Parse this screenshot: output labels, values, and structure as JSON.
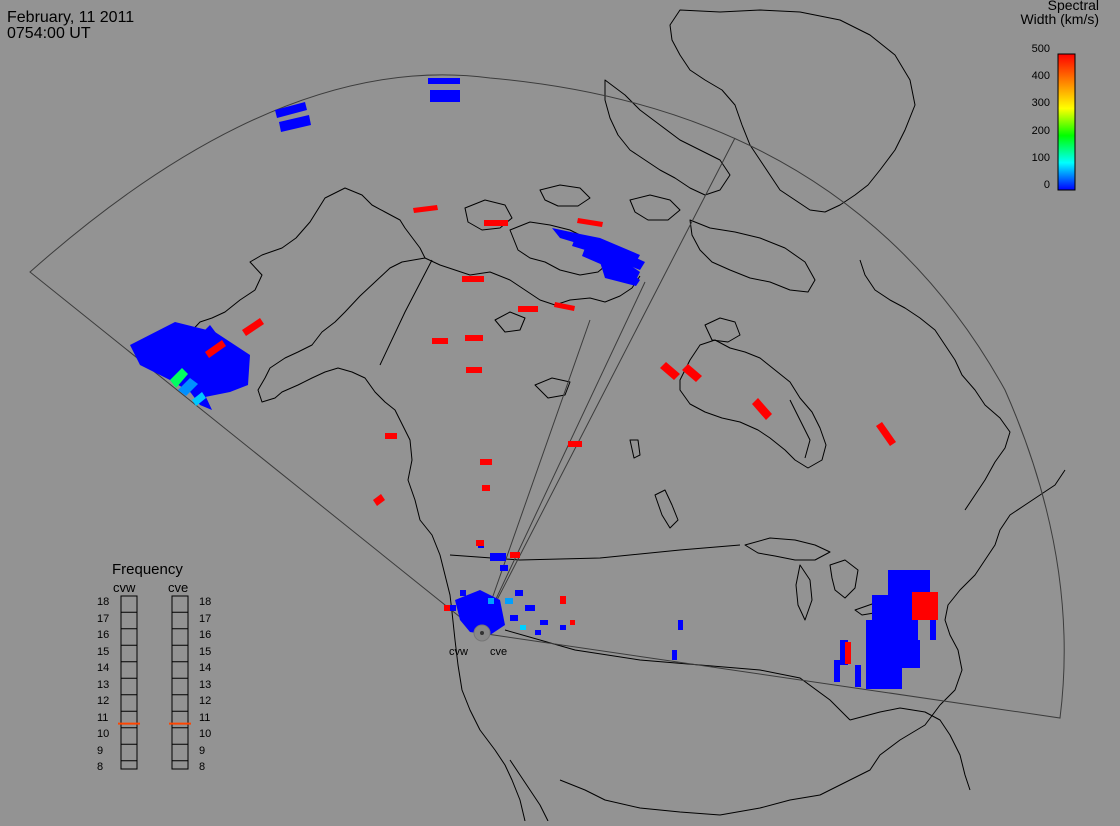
{
  "header": {
    "date": "February, 11 2011",
    "time": "0754:00 UT"
  },
  "colorbar": {
    "title": "Spectral",
    "subtitle": "Width (km/s)",
    "ticks": [
      "500",
      "400",
      "300",
      "200",
      "100",
      "0"
    ],
    "colors": [
      "#ff0000",
      "#ff8000",
      "#ffff00",
      "#00ff00",
      "#00ffff",
      "#0000ff"
    ]
  },
  "frequency_panel": {
    "title": "Frequency",
    "radars": [
      "cvw",
      "cve"
    ],
    "scale": [
      "18",
      "17",
      "16",
      "15",
      "14",
      "13",
      "12",
      "11",
      "10",
      "9",
      "8"
    ],
    "cvw_frequency": 10.75,
    "cve_frequency": 10.75,
    "marker_color": "#ff4500"
  },
  "radar_sites": {
    "west_label": "cvw",
    "east_label": "cve"
  },
  "colors": {
    "background": "#939393",
    "coastline": "#000000",
    "fov": "#3c3c3c",
    "low_width": "#0000ff",
    "high_width": "#ff0000"
  },
  "chart_data": {
    "type": "map",
    "title": "February, 11 2011",
    "subtitle": "0754:00 UT",
    "variable": "Spectral Width (km/s)",
    "color_scale_range": [
      0,
      500
    ],
    "radars": [
      "cvw",
      "cve"
    ]
  }
}
